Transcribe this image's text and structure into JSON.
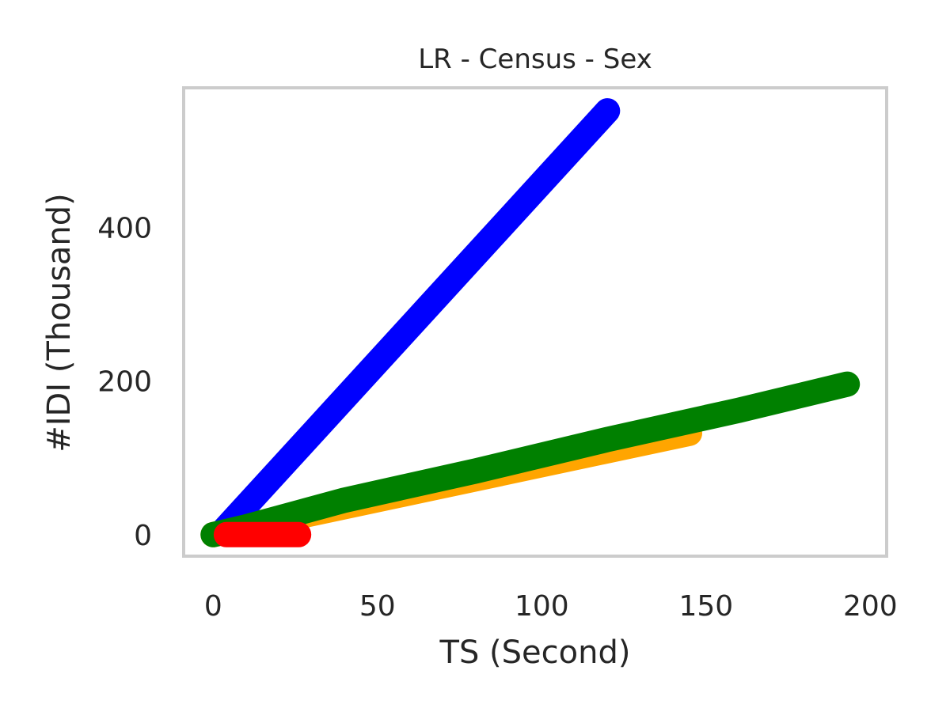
{
  "chart_data": {
    "type": "line",
    "title": "LR - Census - Sex",
    "xlabel": "TS (Second)",
    "ylabel": "#IDI (Thousand)",
    "xlim": [
      -9,
      205
    ],
    "ylim": [
      -28,
      582
    ],
    "x_ticks": [
      0,
      50,
      100,
      150,
      200
    ],
    "y_ticks": [
      0,
      200,
      400
    ],
    "grid": false,
    "legend": "none",
    "series": [
      {
        "color": "#ffa500",
        "x": [
          0,
          145
        ],
        "y": [
          0,
          132
        ]
      },
      {
        "color": "#0000ff",
        "x": [
          3,
          120
        ],
        "y": [
          5,
          552
        ]
      },
      {
        "color": "#008000",
        "x": [
          0,
          10,
          40,
          80,
          120,
          160,
          193
        ],
        "y": [
          0,
          10,
          45,
          83,
          124,
          162,
          196
        ]
      },
      {
        "color": "#ff0000",
        "x": [
          4,
          26
        ],
        "y": [
          0,
          0
        ]
      }
    ]
  }
}
